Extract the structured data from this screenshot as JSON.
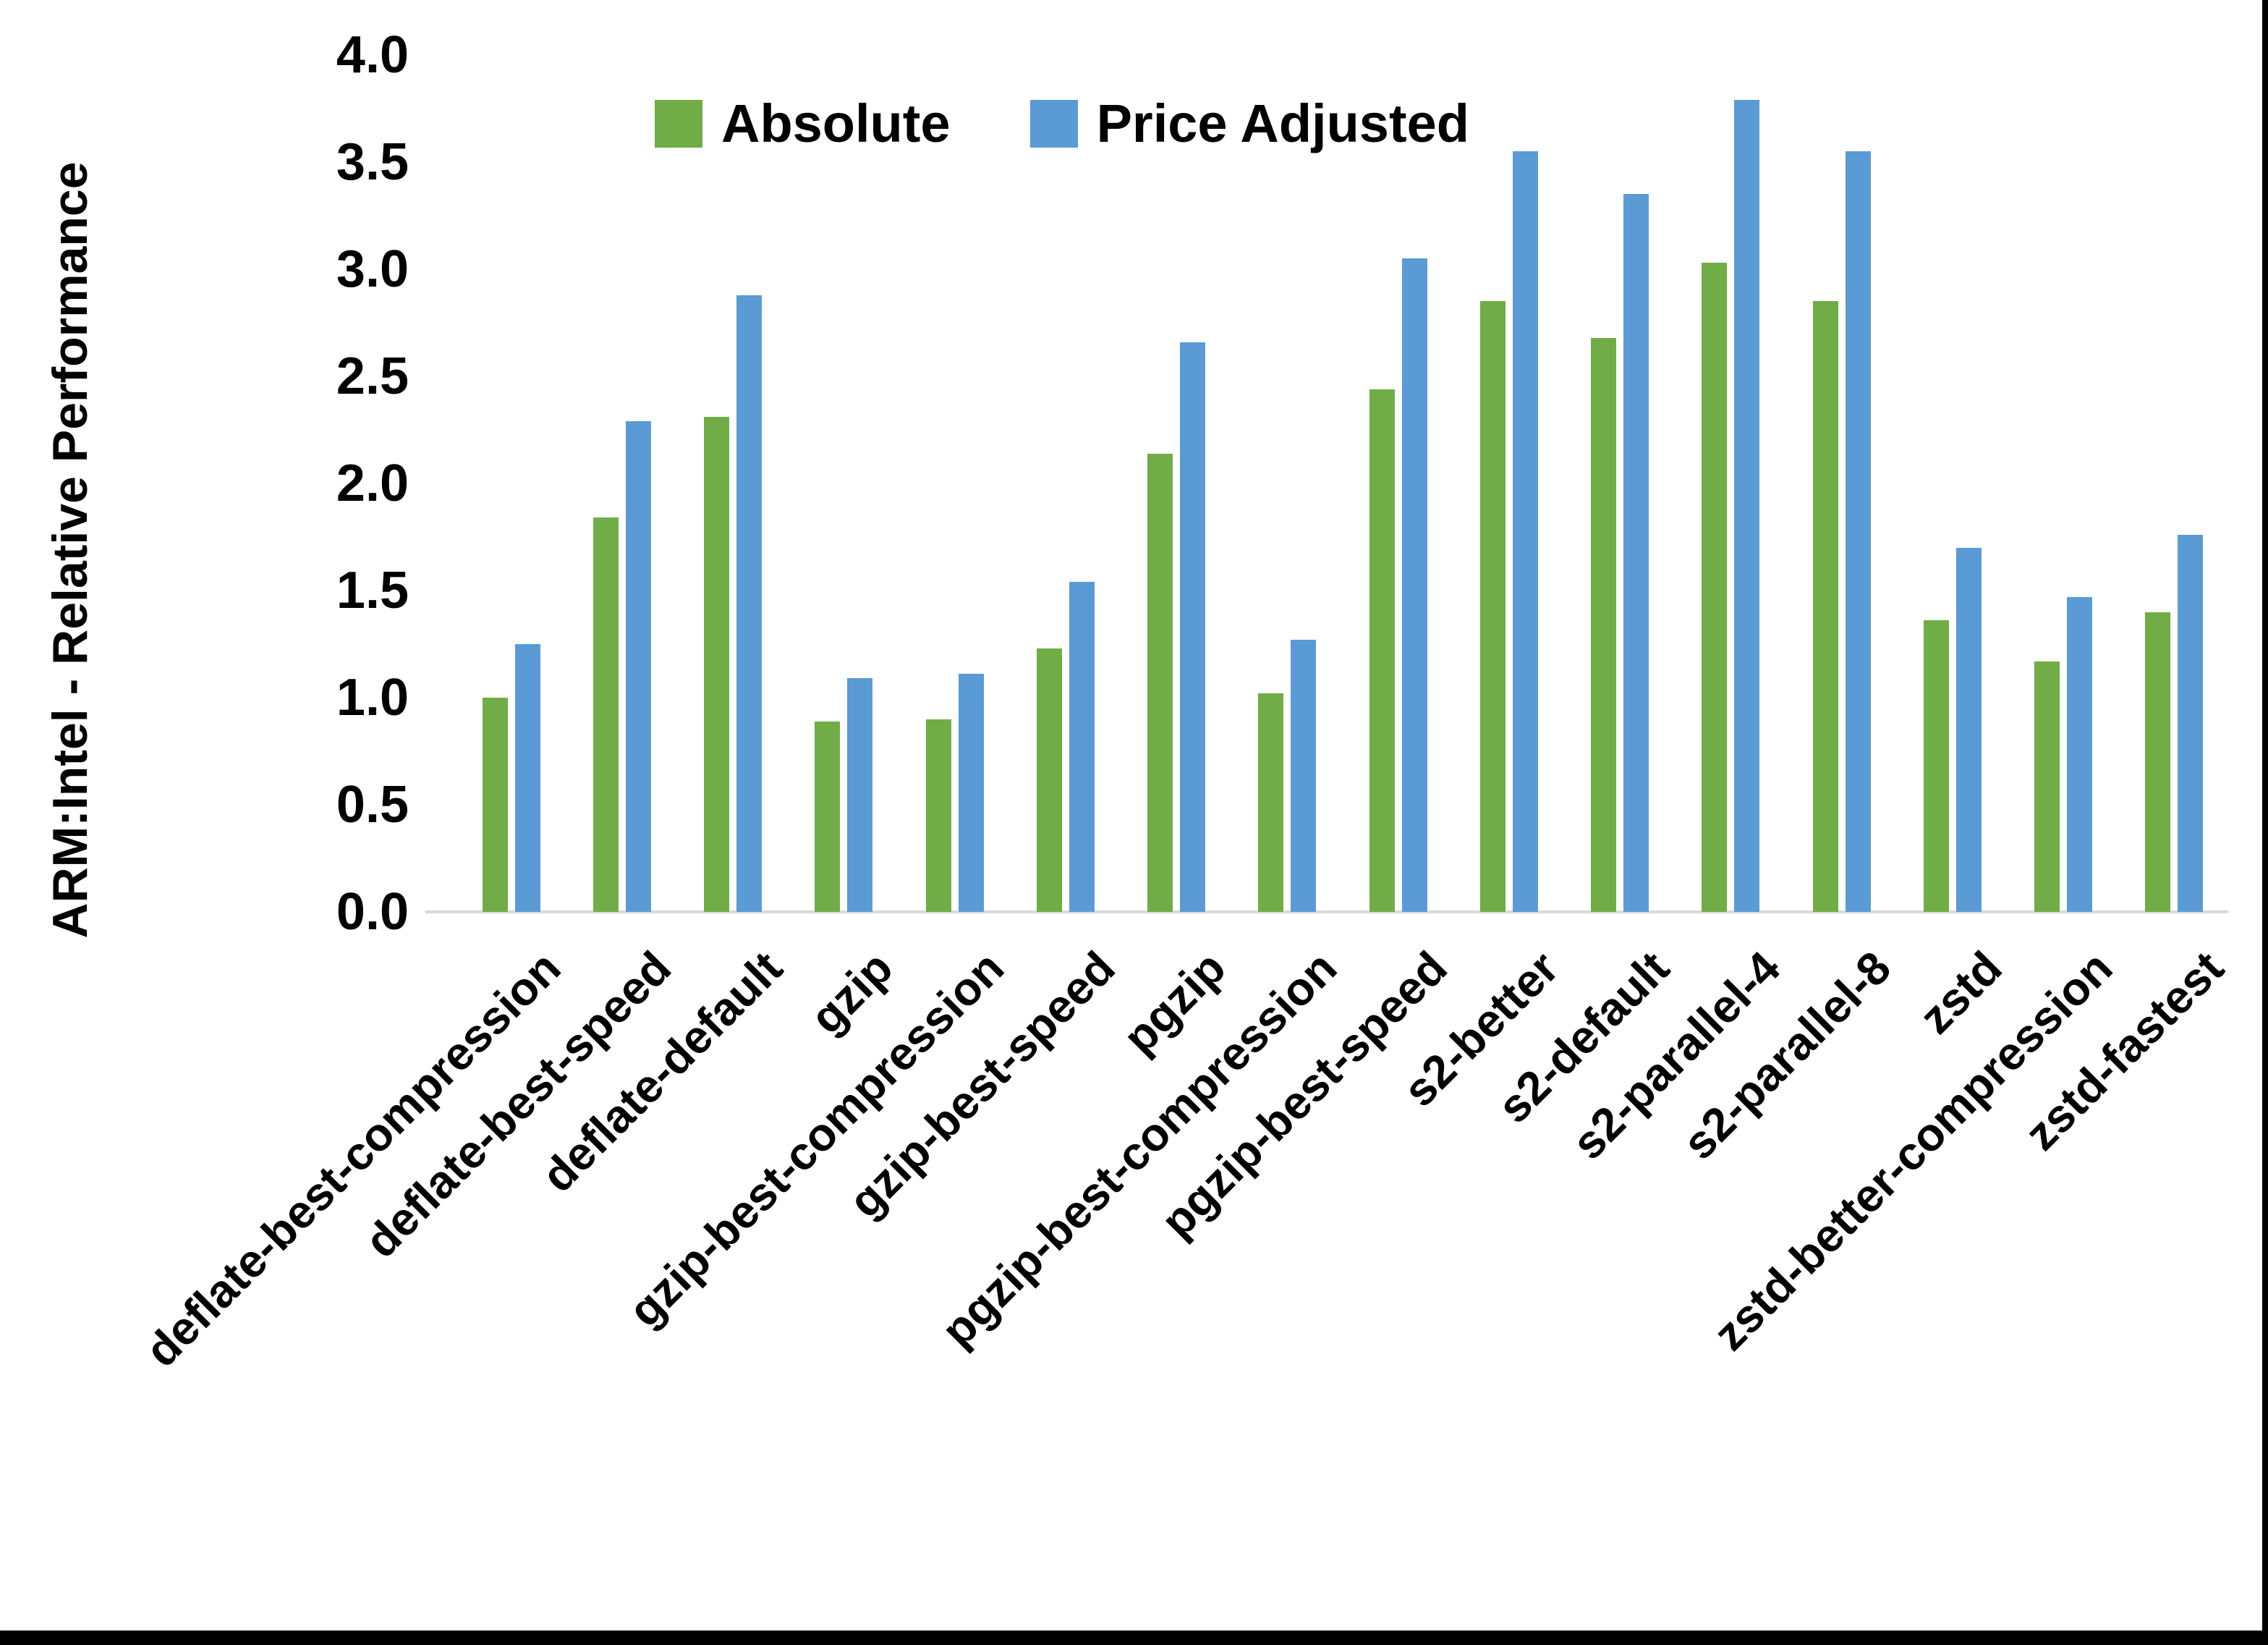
{
  "chart": {
    "y_axis_title": "ARM:Intel - Relative Performance",
    "y_ticks": [
      "4.0",
      "3.5",
      "3.0",
      "2.5",
      "2.0",
      "1.5",
      "1.0",
      "0.5",
      "0.0"
    ],
    "legend": [
      {
        "label": "Absolute",
        "color": "#70AD47"
      },
      {
        "label": "Price Adjusted",
        "color": "#5B9BD5"
      }
    ],
    "axis_line_color": "#D9D9D9",
    "text_color": "#000000"
  },
  "chart_data": {
    "type": "bar",
    "title": "",
    "xlabel": "",
    "ylabel": "ARM:Intel - Relative Performance",
    "ylim": [
      0.0,
      4.0
    ],
    "y_tick_step": 0.5,
    "grid": false,
    "legend_position": "top-center",
    "categories": [
      "deflate-best-compression",
      "deflate-best-speed",
      "deflate-default",
      "gzip",
      "gzip-best-compression",
      "gzip-best-speed",
      "pgzip",
      "pgzip-best-compression",
      "pgzip-best-speed",
      "s2-better",
      "s2-default",
      "s2-parallel-4",
      "s2-parallel-8",
      "zstd",
      "zstd-better-compression",
      "zstd-fastest"
    ],
    "series": [
      {
        "name": "Absolute",
        "color": "#70AD47",
        "values": [
          1.0,
          1.84,
          2.31,
          0.89,
          0.9,
          1.23,
          2.14,
          1.02,
          2.44,
          2.85,
          2.68,
          3.03,
          2.85,
          1.36,
          1.17,
          1.4
        ]
      },
      {
        "name": "Price Adjusted",
        "color": "#5B9BD5",
        "values": [
          1.25,
          2.29,
          2.88,
          1.09,
          1.11,
          1.54,
          2.66,
          1.27,
          3.05,
          3.55,
          3.35,
          3.79,
          3.55,
          1.7,
          1.47,
          1.76
        ]
      }
    ]
  },
  "borders": {
    "bottom_color": "#000000",
    "right_color": "#000000"
  }
}
